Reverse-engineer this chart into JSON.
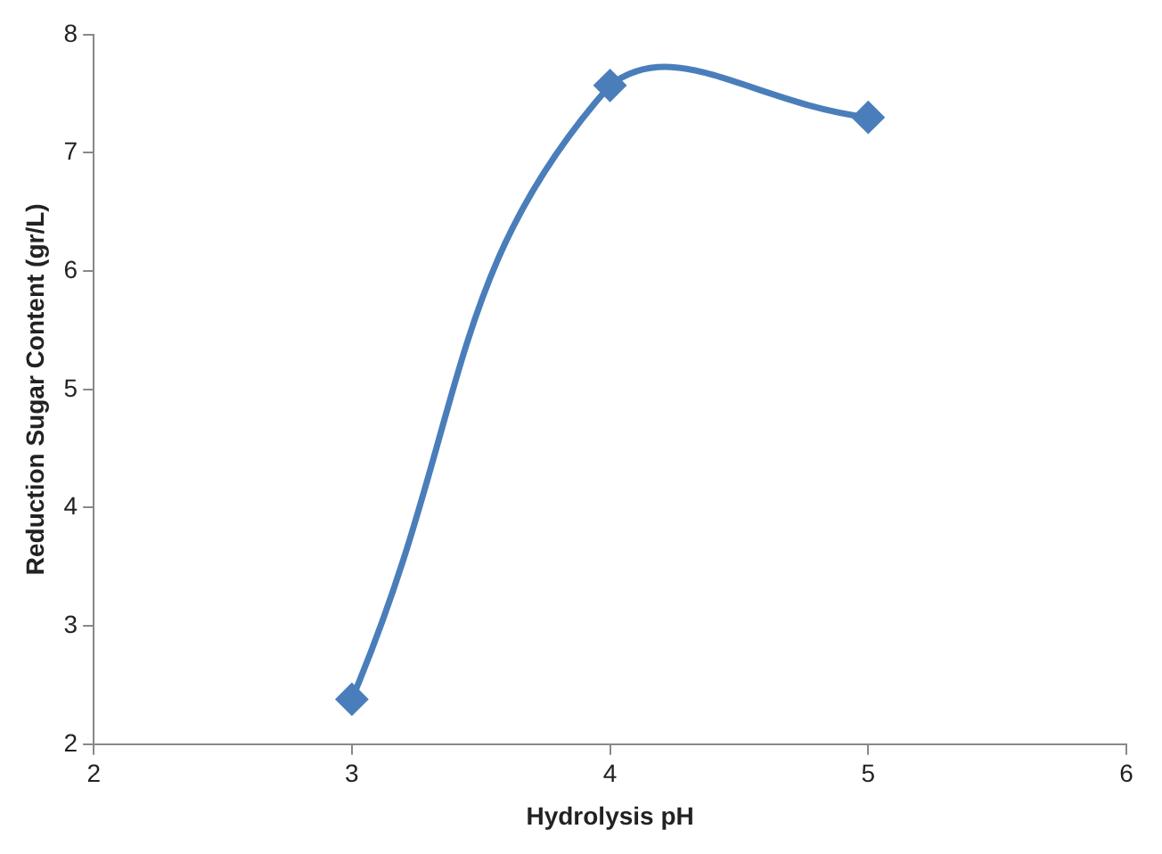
{
  "chart_data": {
    "type": "line",
    "xlabel": "Hydrolysis pH",
    "ylabel": "Reduction Sugar Content (gr/L)",
    "x": [
      3,
      4,
      5
    ],
    "series": [
      {
        "color": "#4a7ebb",
        "values": [
          2.38,
          7.57,
          7.3
        ]
      }
    ],
    "xlim": [
      2,
      6
    ],
    "xticks": [
      2,
      3,
      4,
      5,
      6
    ],
    "ylim": [
      2,
      8
    ],
    "yticks": [
      2,
      3,
      4,
      5,
      6,
      7,
      8
    ],
    "grid": false,
    "legend": false,
    "marker": "diamond",
    "line_style": "solid"
  }
}
